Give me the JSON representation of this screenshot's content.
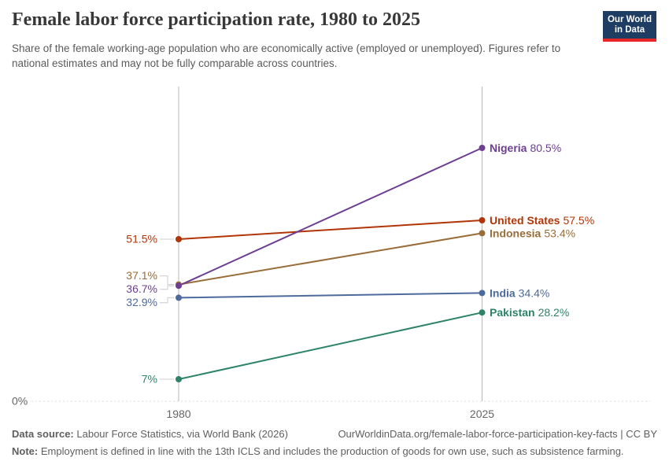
{
  "header": {
    "title": "Female labor force participation rate, 1980 to 2025",
    "subtitle": "Share of the female working-age population who are economically active (employed or unemployed). Figures refer to national estimates and may not be fully comparable across countries.",
    "logo_line1": "Our World",
    "logo_line2": "in Data"
  },
  "chart_data": {
    "type": "line",
    "title": "Female labor force participation rate, 1980 to 2025",
    "x": [
      1980,
      2025
    ],
    "x_tick_labels": [
      "1980",
      "2025"
    ],
    "series": [
      {
        "name": "United States",
        "values": [
          51.5,
          57.5
        ],
        "color": "#b13507"
      },
      {
        "name": "Indonesia",
        "values": [
          37.1,
          53.4
        ],
        "color": "#996d39"
      },
      {
        "name": "Nigeria",
        "values": [
          36.7,
          80.5
        ],
        "color": "#6d3e91"
      },
      {
        "name": "India",
        "values": [
          32.9,
          34.4
        ],
        "color": "#4c6a9c"
      },
      {
        "name": "Pakistan",
        "values": [
          7,
          28.2
        ],
        "color": "#2c8465"
      }
    ],
    "ylim": [
      0,
      100
    ],
    "unit": "%",
    "baseline_label": "0%",
    "grid": "baseline-only",
    "legend_position": "end-labels",
    "value_labels": "both-ends"
  },
  "footer": {
    "source_label": "Data source:",
    "source_text": "Labour Force Statistics, via World Bank (2026)",
    "attribution": "OurWorldinData.org/female-labor-force-participation-key-facts | CC BY",
    "note_label": "Note:",
    "note_text": "Employment is defined in line with the 13th ICLS and includes the production of goods for own use, such as subsistence farming."
  }
}
